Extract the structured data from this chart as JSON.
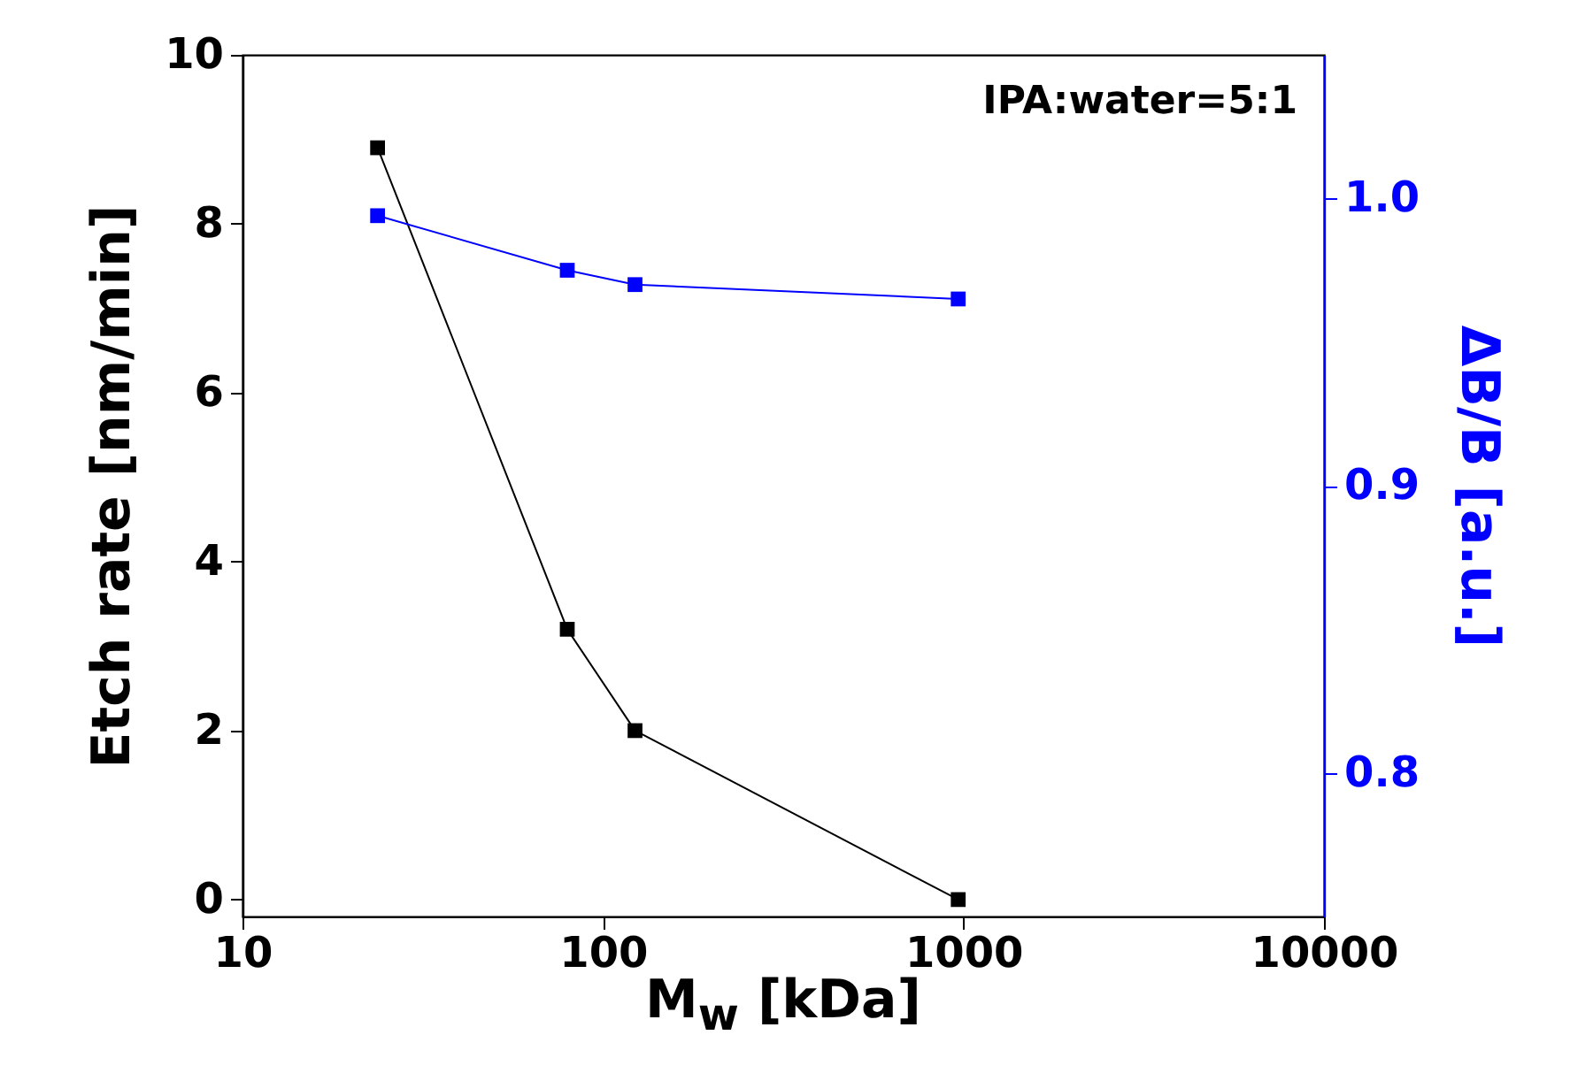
{
  "chart_data": {
    "type": "line",
    "xlabel": "M$_{w}$ [kDa]",
    "ylabel": "Etch rate [nm/min]",
    "y2label": "ΔB/B [a.u.]",
    "annotations": [
      "IPA:water=5:1"
    ],
    "log": "x",
    "marker": "square",
    "line_style": "solid",
    "x": [
      23.7,
      79.6,
      122.7,
      967
    ],
    "xlim": [
      10,
      10000
    ],
    "xticks": [
      10,
      100,
      1000,
      10000
    ],
    "ylim": [
      -0.2,
      10
    ],
    "yticks": [
      0,
      2,
      4,
      6,
      8,
      10
    ],
    "y2lim": [
      0.75,
      1.05
    ],
    "y2ticks": [
      0.8,
      0.9,
      {
        "value": 1.0,
        "label": "1.0"
      }
    ],
    "series": [
      {
        "color": "#000000",
        "values": [
          8.9,
          3.2,
          2.0,
          0.0
        ]
      },
      {
        "color": "#0000ff",
        "axis": "y2",
        "values": [
          0.994,
          0.975,
          0.97,
          0.965
        ]
      }
    ]
  }
}
